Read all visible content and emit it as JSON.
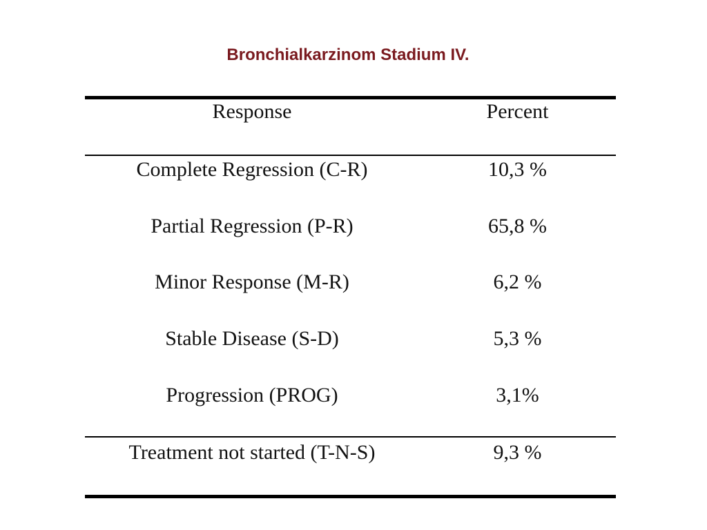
{
  "title": "Bronchialkarzinom Stadium IV.",
  "table": {
    "headers": {
      "response": "Response",
      "percent": "Percent"
    },
    "rows": [
      {
        "response": "Complete Regression (C-R)",
        "percent": "10,3 %"
      },
      {
        "response": "Partial Regression (P-R)",
        "percent": "65,8 %"
      },
      {
        "response": "Minor Response (M-R)",
        "percent": "6,2 %"
      },
      {
        "response": "Stable Disease (S-D)",
        "percent": "5,3 %"
      },
      {
        "response": "Progression (PROG)",
        "percent": "3,1%"
      },
      {
        "response": "Treatment not started (T-N-S)",
        "percent": "9,3 %"
      }
    ]
  }
}
